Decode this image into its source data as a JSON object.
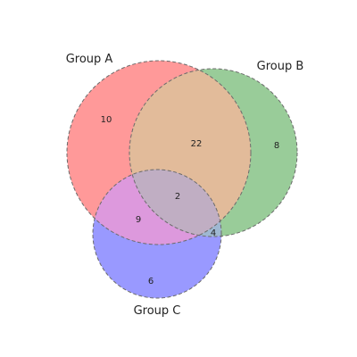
{
  "chart_data": {
    "type": "venn",
    "sets": [
      {
        "name": "Group A",
        "color": "#ff9999"
      },
      {
        "name": "Group B",
        "color": "#99cc99"
      },
      {
        "name": "Group C",
        "color": "#9999ff"
      }
    ],
    "regions": [
      {
        "sets": [
          "Group A"
        ],
        "value": 10
      },
      {
        "sets": [
          "Group B"
        ],
        "value": 8
      },
      {
        "sets": [
          "Group C"
        ],
        "value": 6
      },
      {
        "sets": [
          "Group A",
          "Group B"
        ],
        "value": 22
      },
      {
        "sets": [
          "Group A",
          "Group C"
        ],
        "value": 9
      },
      {
        "sets": [
          "Group B",
          "Group C"
        ],
        "value": 4
      },
      {
        "sets": [
          "Group A",
          "Group B",
          "Group C"
        ],
        "value": 2
      }
    ]
  }
}
